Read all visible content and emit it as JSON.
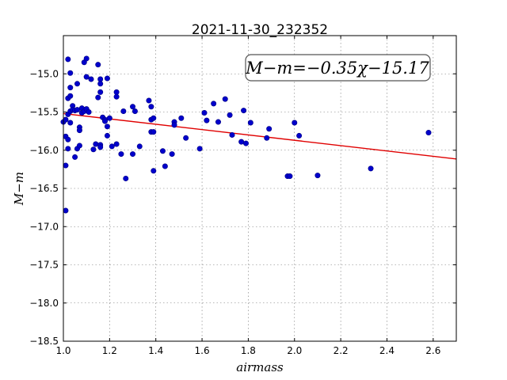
{
  "chart_data": {
    "type": "scatter",
    "title": "2021-11-30_232352",
    "xlabel": "airmass",
    "ylabel": "M−m",
    "annotation": "M−m=−0.35χ−15.17",
    "xlim": [
      1.0,
      2.7
    ],
    "ylim": [
      -18.5,
      -14.5
    ],
    "y_inverted": true,
    "grid": true,
    "x_ticks": [
      1.0,
      1.2,
      1.4,
      1.6,
      1.8,
      2.0,
      2.2,
      2.4,
      2.6
    ],
    "x_tick_labels": [
      "1.0",
      "1.2",
      "1.4",
      "1.6",
      "1.8",
      "2.0",
      "2.2",
      "2.4",
      "2.6"
    ],
    "y_ticks": [
      -15.0,
      -15.5,
      -16.0,
      -16.5,
      -17.0,
      -17.5,
      -18.0,
      -18.5
    ],
    "y_tick_labels": [
      "−15.0",
      "−15.5",
      "−16.0",
      "−16.5",
      "−17.0",
      "−17.5",
      "−18.0",
      "−18.5"
    ],
    "fit": {
      "slope": -0.35,
      "intercept": -15.17,
      "color": "#e00000"
    },
    "point_color": "#0000cc",
    "points": [
      [
        1.0,
        -15.63
      ],
      [
        1.01,
        -15.6
      ],
      [
        1.01,
        -15.82
      ],
      [
        1.01,
        -16.2
      ],
      [
        1.01,
        -16.79
      ],
      [
        1.02,
        -14.81
      ],
      [
        1.02,
        -15.32
      ],
      [
        1.02,
        -15.53
      ],
      [
        1.02,
        -15.98
      ],
      [
        1.02,
        -15.86
      ],
      [
        1.03,
        -14.99
      ],
      [
        1.03,
        -15.29
      ],
      [
        1.03,
        -15.18
      ],
      [
        1.03,
        -15.49
      ],
      [
        1.03,
        -15.64
      ],
      [
        1.04,
        -15.42
      ],
      [
        1.04,
        -15.47
      ],
      [
        1.05,
        -16.09
      ],
      [
        1.05,
        -15.48
      ],
      [
        1.06,
        -15.98
      ],
      [
        1.06,
        -15.13
      ],
      [
        1.06,
        -15.47
      ],
      [
        1.07,
        -15.7
      ],
      [
        1.07,
        -15.74
      ],
      [
        1.07,
        -15.94
      ],
      [
        1.08,
        -15.45
      ],
      [
        1.08,
        -15.51
      ],
      [
        1.09,
        -14.85
      ],
      [
        1.09,
        -15.49
      ],
      [
        1.1,
        -14.8
      ],
      [
        1.1,
        -15.04
      ],
      [
        1.1,
        -15.46
      ],
      [
        1.11,
        -15.5
      ],
      [
        1.12,
        -15.07
      ],
      [
        1.13,
        -15.99
      ],
      [
        1.14,
        -15.92
      ],
      [
        1.15,
        -15.31
      ],
      [
        1.15,
        -14.88
      ],
      [
        1.16,
        -15.07
      ],
      [
        1.16,
        -15.13
      ],
      [
        1.16,
        -15.93
      ],
      [
        1.16,
        -15.96
      ],
      [
        1.16,
        -15.24
      ],
      [
        1.17,
        -15.57
      ],
      [
        1.18,
        -15.6
      ],
      [
        1.18,
        -15.62
      ],
      [
        1.19,
        -15.81
      ],
      [
        1.19,
        -15.06
      ],
      [
        1.19,
        -15.69
      ],
      [
        1.2,
        -15.58
      ],
      [
        1.21,
        -15.95
      ],
      [
        1.23,
        -15.24
      ],
      [
        1.23,
        -15.3
      ],
      [
        1.23,
        -15.92
      ],
      [
        1.25,
        -16.05
      ],
      [
        1.26,
        -15.49
      ],
      [
        1.27,
        -16.37
      ],
      [
        1.3,
        -15.43
      ],
      [
        1.3,
        -16.05
      ],
      [
        1.31,
        -15.49
      ],
      [
        1.33,
        -15.95
      ],
      [
        1.37,
        -15.35
      ],
      [
        1.38,
        -15.43
      ],
      [
        1.38,
        -15.76
      ],
      [
        1.38,
        -15.6
      ],
      [
        1.39,
        -15.58
      ],
      [
        1.39,
        -16.27
      ],
      [
        1.39,
        -15.76
      ],
      [
        1.43,
        -16.01
      ],
      [
        1.44,
        -16.21
      ],
      [
        1.47,
        -16.05
      ],
      [
        1.48,
        -15.63
      ],
      [
        1.48,
        -15.67
      ],
      [
        1.51,
        -15.58
      ],
      [
        1.53,
        -15.84
      ],
      [
        1.59,
        -15.98
      ],
      [
        1.61,
        -15.51
      ],
      [
        1.62,
        -15.61
      ],
      [
        1.65,
        -15.39
      ],
      [
        1.67,
        -15.63
      ],
      [
        1.7,
        -15.33
      ],
      [
        1.72,
        -15.54
      ],
      [
        1.73,
        -15.8
      ],
      [
        1.77,
        -15.89
      ],
      [
        1.78,
        -15.48
      ],
      [
        1.79,
        -15.91
      ],
      [
        1.81,
        -15.64
      ],
      [
        1.88,
        -15.84
      ],
      [
        1.89,
        -15.72
      ],
      [
        1.97,
        -16.34
      ],
      [
        1.98,
        -16.34
      ],
      [
        2.0,
        -15.64
      ],
      [
        2.02,
        -15.81
      ],
      [
        2.1,
        -16.33
      ],
      [
        2.33,
        -16.24
      ],
      [
        2.58,
        -15.77
      ]
    ]
  }
}
